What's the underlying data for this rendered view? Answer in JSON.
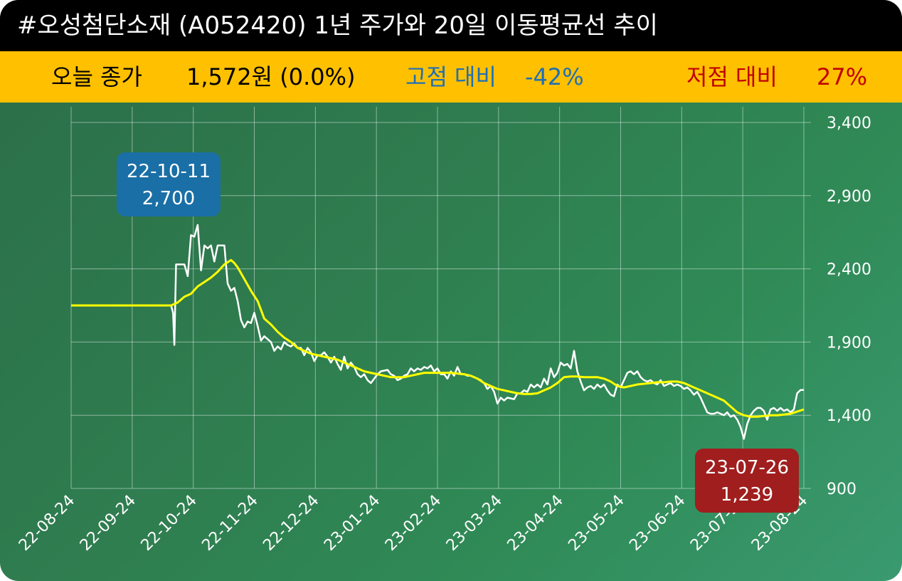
{
  "header": {
    "title": "#오성첨단소재 (A052420) 1년 주가와 20일 이동평균선 추이"
  },
  "info": {
    "close_label": "오늘 종가",
    "close_value": "1,572원 (0.0%)",
    "high_label": "고점 대비",
    "high_value": "-42%",
    "low_label": "저점 대비",
    "low_value": "27%"
  },
  "colors": {
    "title_bg": "#000000",
    "info_bg": "#ffc000",
    "high_color": "#1f6fb5",
    "low_color": "#c00000",
    "price_line": "#ffffff",
    "ma_line": "#ffff00",
    "high_note_bg": "#1a6fa6",
    "low_note_bg": "#a01e1e"
  },
  "chart_data": {
    "type": "line",
    "ylim": [
      900,
      3400
    ],
    "yticks": [
      "3,400",
      "2,900",
      "2,400",
      "1,900",
      "1,400",
      "900"
    ],
    "ytick_values": [
      3400,
      2900,
      2400,
      1900,
      1400,
      900
    ],
    "xticks": [
      "22-08-24",
      "22-09-24",
      "22-10-24",
      "22-11-24",
      "22-12-24",
      "23-01-24",
      "23-02-24",
      "23-03-24",
      "23-04-24",
      "23-05-24",
      "23-06-24",
      "23-07-24",
      "23-08-24"
    ],
    "grid": true,
    "series": [
      {
        "key": "price",
        "values": [
          [
            0,
            2150
          ],
          [
            30,
            2150
          ],
          [
            30.6,
            2100
          ],
          [
            31,
            1880
          ],
          [
            31.5,
            2430
          ],
          [
            34,
            2430
          ],
          [
            35,
            2350
          ],
          [
            36,
            2630
          ],
          [
            37,
            2620
          ],
          [
            38,
            2700
          ],
          [
            39,
            2390
          ],
          [
            40,
            2560
          ],
          [
            41,
            2540
          ],
          [
            42,
            2560
          ],
          [
            43,
            2450
          ],
          [
            44,
            2560
          ],
          [
            46,
            2560
          ],
          [
            47,
            2300
          ],
          [
            48,
            2250
          ],
          [
            49,
            2270
          ],
          [
            50,
            2180
          ],
          [
            51,
            2050
          ],
          [
            52,
            2000
          ],
          [
            53,
            2040
          ],
          [
            54,
            2030
          ],
          [
            55,
            2100
          ],
          [
            56,
            2010
          ],
          [
            57,
            1910
          ],
          [
            58,
            1940
          ],
          [
            60,
            1900
          ],
          [
            61,
            1840
          ],
          [
            62,
            1870
          ],
          [
            63,
            1850
          ],
          [
            64,
            1900
          ],
          [
            65,
            1880
          ],
          [
            66,
            1870
          ],
          [
            67,
            1890
          ],
          [
            68,
            1860
          ],
          [
            69,
            1860
          ],
          [
            70,
            1810
          ],
          [
            71,
            1860
          ],
          [
            72,
            1830
          ],
          [
            73,
            1770
          ],
          [
            74,
            1810
          ],
          [
            75,
            1810
          ],
          [
            76,
            1830
          ],
          [
            77,
            1800
          ],
          [
            78,
            1760
          ],
          [
            79,
            1800
          ],
          [
            80,
            1750
          ],
          [
            81,
            1710
          ],
          [
            82,
            1800
          ],
          [
            83,
            1720
          ],
          [
            84,
            1760
          ],
          [
            85,
            1730
          ],
          [
            86,
            1680
          ],
          [
            87,
            1660
          ],
          [
            88,
            1680
          ],
          [
            89,
            1640
          ],
          [
            90,
            1620
          ],
          [
            92,
            1680
          ],
          [
            93,
            1700
          ],
          [
            95,
            1710
          ],
          [
            96,
            1680
          ],
          [
            97,
            1670
          ],
          [
            98,
            1640
          ],
          [
            99,
            1650
          ],
          [
            100,
            1670
          ],
          [
            101,
            1680
          ],
          [
            102,
            1720
          ],
          [
            103,
            1700
          ],
          [
            104,
            1720
          ],
          [
            105,
            1710
          ],
          [
            106,
            1730
          ],
          [
            107,
            1720
          ],
          [
            108,
            1740
          ],
          [
            109,
            1700
          ],
          [
            110,
            1720
          ],
          [
            111,
            1680
          ],
          [
            112,
            1680
          ],
          [
            113,
            1650
          ],
          [
            114,
            1700
          ],
          [
            115,
            1670
          ],
          [
            116,
            1730
          ],
          [
            117,
            1680
          ],
          [
            118,
            1680
          ],
          [
            119,
            1670
          ],
          [
            120,
            1670
          ],
          [
            121,
            1660
          ],
          [
            122,
            1650
          ],
          [
            123,
            1640
          ],
          [
            124,
            1620
          ],
          [
            125,
            1580
          ],
          [
            126,
            1600
          ],
          [
            127,
            1560
          ],
          [
            128,
            1480
          ],
          [
            129,
            1520
          ],
          [
            130,
            1500
          ],
          [
            131,
            1520
          ],
          [
            133,
            1510
          ],
          [
            134,
            1550
          ],
          [
            135,
            1550
          ],
          [
            136,
            1570
          ],
          [
            137,
            1560
          ],
          [
            138,
            1610
          ],
          [
            139,
            1590
          ],
          [
            140,
            1610
          ],
          [
            141,
            1590
          ],
          [
            142,
            1650
          ],
          [
            143,
            1610
          ],
          [
            144,
            1720
          ],
          [
            145,
            1660
          ],
          [
            146,
            1690
          ],
          [
            147,
            1760
          ],
          [
            148,
            1740
          ],
          [
            149,
            1750
          ],
          [
            150,
            1720
          ],
          [
            151,
            1840
          ],
          [
            152,
            1700
          ],
          [
            153,
            1630
          ],
          [
            154,
            1570
          ],
          [
            155,
            1590
          ],
          [
            156,
            1600
          ],
          [
            157,
            1580
          ],
          [
            158,
            1610
          ],
          [
            159,
            1590
          ],
          [
            160,
            1610
          ],
          [
            161,
            1570
          ],
          [
            162,
            1540
          ],
          [
            163,
            1530
          ],
          [
            164,
            1610
          ],
          [
            165,
            1590
          ],
          [
            166,
            1640
          ],
          [
            167,
            1690
          ],
          [
            168,
            1700
          ],
          [
            169,
            1680
          ],
          [
            170,
            1700
          ],
          [
            171,
            1660
          ],
          [
            172,
            1640
          ],
          [
            173,
            1630
          ],
          [
            174,
            1640
          ],
          [
            175,
            1620
          ],
          [
            176,
            1610
          ],
          [
            177,
            1640
          ],
          [
            178,
            1600
          ],
          [
            179,
            1610
          ],
          [
            180,
            1620
          ],
          [
            181,
            1600
          ],
          [
            182,
            1610
          ],
          [
            183,
            1600
          ],
          [
            184,
            1580
          ],
          [
            185,
            1590
          ],
          [
            186,
            1570
          ],
          [
            187,
            1540
          ],
          [
            188,
            1560
          ],
          [
            189,
            1520
          ],
          [
            190,
            1470
          ],
          [
            191,
            1420
          ],
          [
            192,
            1410
          ],
          [
            193,
            1410
          ],
          [
            194,
            1420
          ],
          [
            195,
            1410
          ],
          [
            196,
            1400
          ],
          [
            197,
            1420
          ],
          [
            198,
            1390
          ],
          [
            199,
            1400
          ],
          [
            200,
            1370
          ],
          [
            201,
            1320
          ],
          [
            202,
            1239
          ],
          [
            203,
            1340
          ],
          [
            204,
            1400
          ],
          [
            205,
            1430
          ],
          [
            206,
            1450
          ],
          [
            207,
            1450
          ],
          [
            208,
            1430
          ],
          [
            209,
            1370
          ],
          [
            210,
            1440
          ],
          [
            211,
            1450
          ],
          [
            212,
            1430
          ],
          [
            213,
            1450
          ],
          [
            214,
            1430
          ],
          [
            215,
            1440
          ],
          [
            216,
            1420
          ],
          [
            217,
            1440
          ],
          [
            218,
            1550
          ],
          [
            219,
            1572
          ],
          [
            220,
            1572
          ]
        ]
      },
      {
        "key": "ma20",
        "values": [
          [
            0,
            2150
          ],
          [
            30,
            2150
          ],
          [
            32,
            2170
          ],
          [
            34,
            2210
          ],
          [
            36,
            2230
          ],
          [
            38,
            2280
          ],
          [
            40,
            2310
          ],
          [
            42,
            2340
          ],
          [
            44,
            2380
          ],
          [
            46,
            2430
          ],
          [
            48,
            2460
          ],
          [
            49,
            2440
          ],
          [
            50,
            2410
          ],
          [
            52,
            2330
          ],
          [
            54,
            2250
          ],
          [
            56,
            2180
          ],
          [
            58,
            2060
          ],
          [
            60,
            2020
          ],
          [
            62,
            1970
          ],
          [
            64,
            1930
          ],
          [
            66,
            1900
          ],
          [
            68,
            1860
          ],
          [
            70,
            1840
          ],
          [
            72,
            1820
          ],
          [
            74,
            1810
          ],
          [
            76,
            1800
          ],
          [
            78,
            1790
          ],
          [
            80,
            1780
          ],
          [
            82,
            1760
          ],
          [
            84,
            1740
          ],
          [
            86,
            1720
          ],
          [
            88,
            1700
          ],
          [
            90,
            1690
          ],
          [
            92,
            1680
          ],
          [
            94,
            1670
          ],
          [
            96,
            1660
          ],
          [
            98,
            1660
          ],
          [
            100,
            1660
          ],
          [
            102,
            1670
          ],
          [
            104,
            1680
          ],
          [
            106,
            1690
          ],
          [
            108,
            1690
          ],
          [
            110,
            1690
          ],
          [
            112,
            1690
          ],
          [
            114,
            1690
          ],
          [
            116,
            1685
          ],
          [
            118,
            1680
          ],
          [
            120,
            1670
          ],
          [
            122,
            1650
          ],
          [
            124,
            1620
          ],
          [
            126,
            1600
          ],
          [
            128,
            1580
          ],
          [
            130,
            1570
          ],
          [
            132,
            1560
          ],
          [
            134,
            1550
          ],
          [
            136,
            1545
          ],
          [
            138,
            1545
          ],
          [
            140,
            1550
          ],
          [
            142,
            1570
          ],
          [
            144,
            1590
          ],
          [
            146,
            1620
          ],
          [
            148,
            1660
          ],
          [
            150,
            1665
          ],
          [
            152,
            1665
          ],
          [
            154,
            1660
          ],
          [
            156,
            1660
          ],
          [
            158,
            1660
          ],
          [
            160,
            1650
          ],
          [
            162,
            1630
          ],
          [
            164,
            1600
          ],
          [
            166,
            1590
          ],
          [
            168,
            1600
          ],
          [
            170,
            1610
          ],
          [
            172,
            1615
          ],
          [
            174,
            1620
          ],
          [
            176,
            1625
          ],
          [
            178,
            1625
          ],
          [
            180,
            1630
          ],
          [
            182,
            1630
          ],
          [
            184,
            1620
          ],
          [
            186,
            1600
          ],
          [
            188,
            1580
          ],
          [
            190,
            1560
          ],
          [
            192,
            1540
          ],
          [
            194,
            1520
          ],
          [
            196,
            1500
          ],
          [
            198,
            1460
          ],
          [
            200,
            1420
          ],
          [
            202,
            1400
          ],
          [
            204,
            1390
          ],
          [
            206,
            1390
          ],
          [
            208,
            1395
          ],
          [
            210,
            1400
          ],
          [
            212,
            1400
          ],
          [
            214,
            1405
          ],
          [
            216,
            1410
          ],
          [
            218,
            1425
          ],
          [
            220,
            1440
          ]
        ]
      }
    ],
    "annotations": [
      {
        "key": "high",
        "date": "22-10-11",
        "value": "2,700"
      },
      {
        "key": "low",
        "date": "23-07-26",
        "value": "1,239"
      }
    ]
  }
}
